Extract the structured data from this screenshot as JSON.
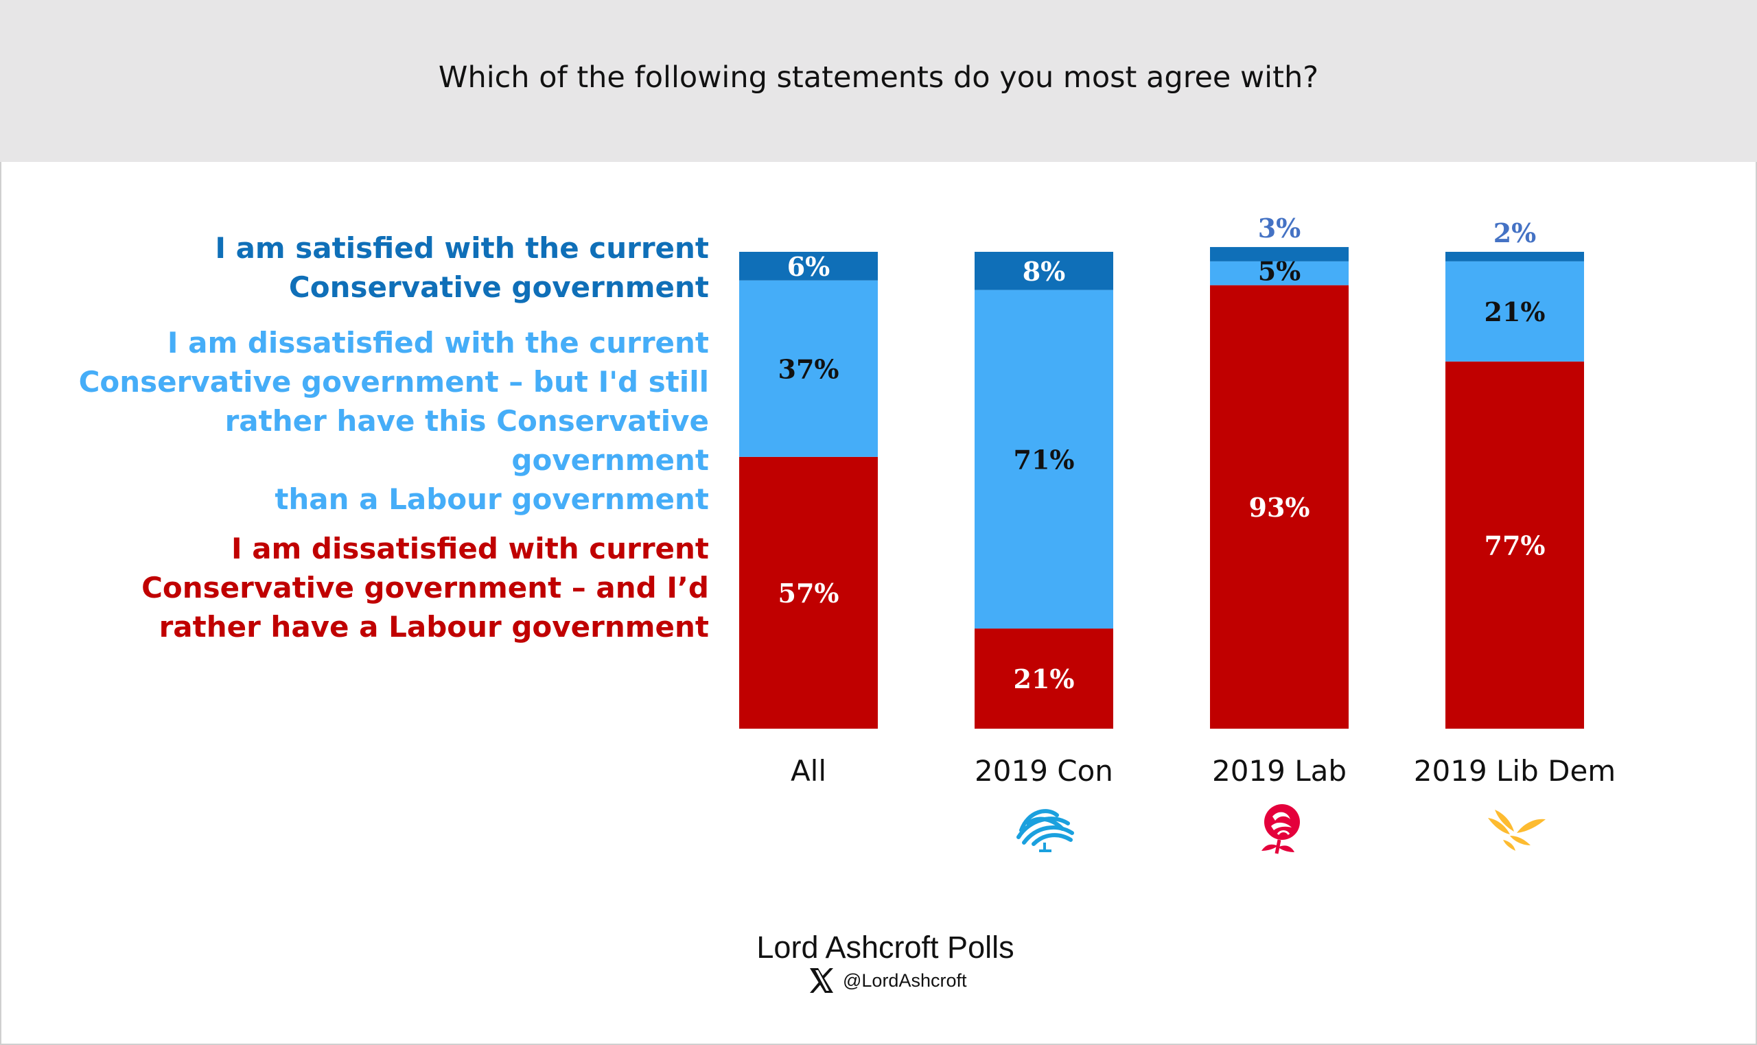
{
  "title": "Which of the following statements do you most agree with?",
  "colors": {
    "satisfied": "#0f6fb8",
    "dissatisfied_keep_con": "#45adf8",
    "dissatisfied_prefer_lab": "#c00000",
    "header_band": "#e7e6e7",
    "small_label": "#4472c4"
  },
  "chart_data": {
    "type": "bar",
    "stacked": true,
    "categories": [
      "All",
      "2019 Con",
      "2019 Lab",
      "2019 Lib Dem"
    ],
    "ylim": [
      0,
      100
    ],
    "grid": false,
    "legend_placement": "left",
    "series": [
      {
        "name": "I am dissatisfied with current Conservative government – and I’d rather have a Labour government",
        "values": [
          57,
          21,
          93,
          77
        ],
        "labels": [
          "57%",
          "21%",
          "93%",
          "77%"
        ]
      },
      {
        "name": "I am dissatisfied with the current Conservative government – but I'd still rather have this Conservative government than a Labour government",
        "values": [
          37,
          71,
          5,
          21
        ],
        "labels": [
          "37%",
          "71%",
          "5%",
          "21%"
        ]
      },
      {
        "name": "I am satisfied with the current Conservative government",
        "values": [
          6,
          8,
          3,
          2
        ],
        "labels": [
          "6%",
          "8%",
          "3%",
          "2%"
        ]
      }
    ]
  },
  "legend": [
    {
      "lines": [
        "I am satisfied with the current",
        "Conservative government"
      ]
    },
    {
      "lines": [
        "I am dissatisfied with the current",
        "Conservative government – but I'd still",
        "rather have this Conservative government",
        "than a Labour government"
      ]
    },
    {
      "lines": [
        "I am dissatisfied with current",
        "Conservative government – and I’d",
        "rather have a Labour government"
      ]
    }
  ],
  "logos": [
    "conservative-tree-icon",
    "labour-rose-icon",
    "libdem-bird-icon"
  ],
  "footer": {
    "brand": "Lord Ashcroft Polls",
    "handle": "@LordAshcroft",
    "icon": "x-logo-icon"
  }
}
